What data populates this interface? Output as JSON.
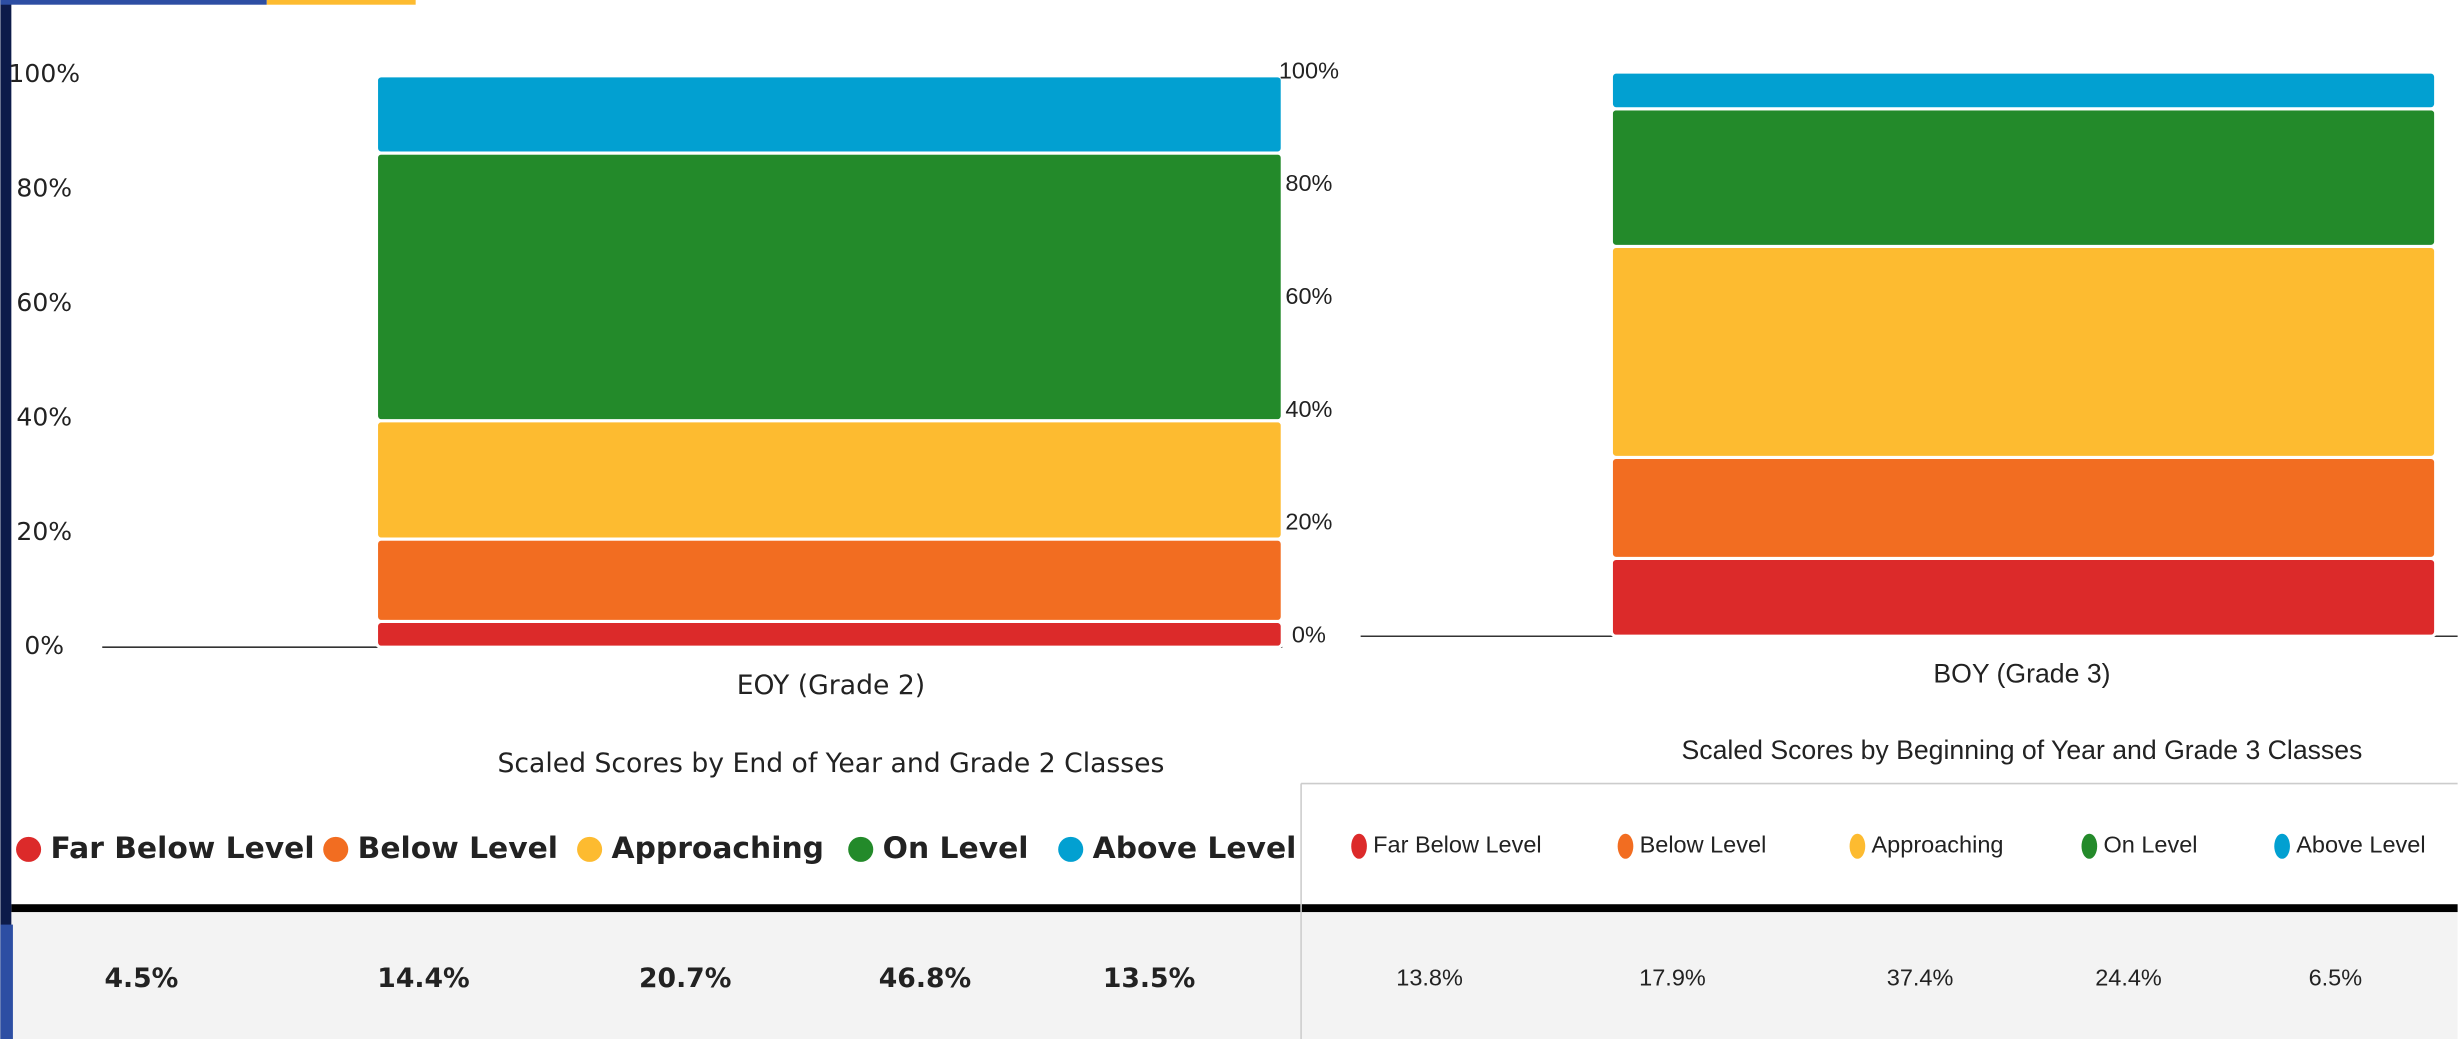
{
  "chart_data": [
    {
      "type": "stacked_bar",
      "title": "Scaled Scores by End of Year and Grade 2 Classes",
      "categories": [
        "EOY (Grade 2)"
      ],
      "series": [
        {
          "name": "Far Below Level",
          "color": "#dc2a2a",
          "values": [
            4.5
          ],
          "value_labels": [
            "4.5%"
          ]
        },
        {
          "name": "Below Level",
          "color": "#f26d21",
          "values": [
            14.4
          ],
          "value_labels": [
            "14.4%"
          ]
        },
        {
          "name": "Approaching",
          "color": "#fdbb30",
          "values": [
            20.7
          ],
          "value_labels": [
            "20.7%"
          ]
        },
        {
          "name": "On Level",
          "color": "#238a2a",
          "values": [
            46.8
          ],
          "value_labels": [
            "46.8%"
          ]
        },
        {
          "name": "Above Level",
          "color": "#02a0d1",
          "values": [
            13.5
          ],
          "value_labels": [
            "13.5%"
          ]
        }
      ],
      "ylim": [
        0,
        100
      ],
      "yticks": [
        {
          "value": 0,
          "label": "0%"
        },
        {
          "value": 20,
          "label": "20%"
        },
        {
          "value": 40,
          "label": "40%"
        },
        {
          "value": 60,
          "label": "60%"
        },
        {
          "value": 80,
          "label": "80%"
        },
        {
          "value": 100,
          "label": "100%"
        }
      ]
    },
    {
      "type": "stacked_bar",
      "title": "Scaled Scores by Beginning of Year and Grade 3 Classes",
      "categories": [
        "BOY (Grade 3)"
      ],
      "series": [
        {
          "name": "Far Below Level",
          "color": "#dc2a2a",
          "values": [
            13.8
          ],
          "value_labels": [
            "13.8%"
          ]
        },
        {
          "name": "Below Level",
          "color": "#f26d21",
          "values": [
            17.9
          ],
          "value_labels": [
            "17.9%"
          ]
        },
        {
          "name": "Approaching",
          "color": "#fdbb30",
          "values": [
            37.4
          ],
          "value_labels": [
            "37.4%"
          ]
        },
        {
          "name": "On Level",
          "color": "#238a2a",
          "values": [
            24.4
          ],
          "value_labels": [
            "24.4%"
          ]
        },
        {
          "name": "Above Level",
          "color": "#02a0d1",
          "values": [
            6.5
          ],
          "value_labels": [
            "6.5%"
          ]
        }
      ],
      "ylim": [
        0,
        100
      ],
      "yticks": [
        {
          "value": 0,
          "label": "0%"
        },
        {
          "value": 20,
          "label": "20%"
        },
        {
          "value": 40,
          "label": "40%"
        },
        {
          "value": 60,
          "label": "60%"
        },
        {
          "value": 80,
          "label": "80%"
        },
        {
          "value": 100,
          "label": "100%"
        }
      ]
    }
  ]
}
